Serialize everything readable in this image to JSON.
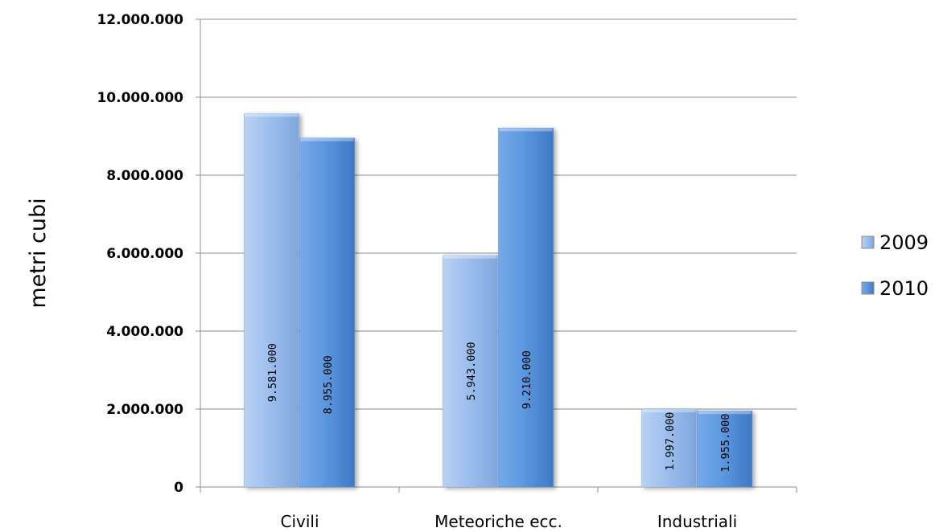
{
  "chart_data": {
    "type": "bar",
    "categories": [
      "Civili",
      "Meteoriche ecc.",
      "Industriali"
    ],
    "series": [
      {
        "name": "2009",
        "values": [
          9581000,
          5943000,
          1997000
        ],
        "labels": [
          "9.581.000",
          "5.943.000",
          "1.997.000"
        ],
        "color": "#95b8ea"
      },
      {
        "name": "2010",
        "values": [
          8955000,
          9210000,
          1955000
        ],
        "labels": [
          "8.955.000",
          "9.210.000",
          "1.955.000"
        ],
        "color": "#5b96dd"
      }
    ],
    "ylabel": "metri cubi",
    "xlabel": "",
    "ylim": [
      0,
      12000000
    ],
    "yticks": [
      0,
      2000000,
      4000000,
      6000000,
      8000000,
      10000000,
      12000000
    ],
    "ytick_labels": [
      "0",
      "2.000.000",
      "4.000.000",
      "6.000.000",
      "8.000.000",
      "10.000.000",
      "12.000.000"
    ],
    "grid": true,
    "legend_position": "right"
  }
}
